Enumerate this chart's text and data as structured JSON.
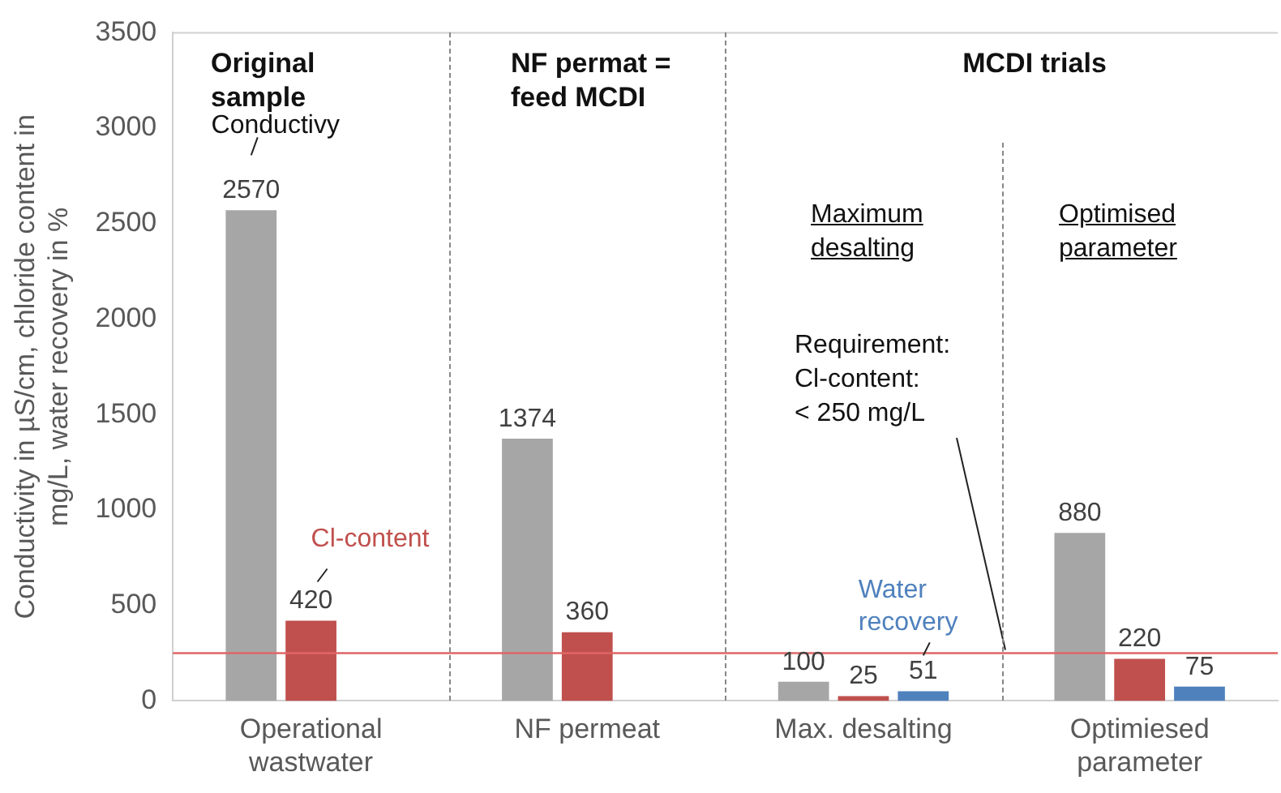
{
  "chart_data": {
    "type": "bar",
    "ylabel": "Conductivity in µS/cm, chloride content in mg/L, water recovery in %",
    "categories": [
      "Operational wastwater",
      "NF permeat",
      "Max. desalting",
      "Optimiesed parameter"
    ],
    "series": [
      {
        "name": "Conductivy",
        "color": "#a6a6a6",
        "values": [
          2570,
          1374,
          100,
          880
        ]
      },
      {
        "name": "Cl-content",
        "color": "#c0504d",
        "values": [
          420,
          360,
          25,
          220
        ]
      },
      {
        "name": "Water recovery",
        "color": "#4f81bd",
        "values": [
          null,
          null,
          51,
          75
        ]
      }
    ],
    "ylim": [
      0,
      3500
    ],
    "yticks": [
      0,
      500,
      1000,
      1500,
      2000,
      2500,
      3000,
      3500
    ],
    "grid": false,
    "legend": false,
    "data_labels": true,
    "ref_lines": [
      {
        "axis": "y",
        "value": 250,
        "label": "Requirement: Cl-content: < 250 mg/L",
        "color": "#e06666"
      }
    ],
    "annotations": [
      "Original sample",
      "NF permat = feed MCDI",
      "MCDI trials",
      "Maximum desalting",
      "Optimised parameter"
    ]
  }
}
